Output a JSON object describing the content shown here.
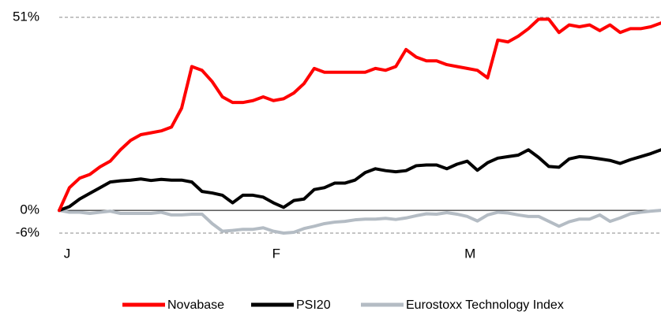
{
  "chart_data": {
    "type": "line",
    "x": [
      0,
      1,
      2,
      3,
      4,
      5,
      6,
      7,
      8,
      9,
      10,
      11,
      12,
      13,
      14,
      15,
      16,
      17,
      18,
      19,
      20,
      21,
      22,
      23,
      24,
      25,
      26,
      27,
      28,
      29,
      30,
      31,
      32,
      33,
      34,
      35,
      36,
      37,
      38,
      39,
      40,
      41,
      42,
      43,
      44,
      45,
      46,
      47,
      48,
      49,
      50,
      51,
      52,
      53,
      54,
      55,
      56,
      57,
      58,
      59
    ],
    "xlim": [
      0,
      59
    ],
    "xticks": [
      {
        "value": 0,
        "label": "J"
      },
      {
        "value": 20.5,
        "label": "F"
      },
      {
        "value": 39.5,
        "label": "M"
      }
    ],
    "ylim": [
      -6,
      51
    ],
    "yticks": [
      {
        "value": -6,
        "label": "-6%"
      },
      {
        "value": 0,
        "label": "0%"
      },
      {
        "value": 51,
        "label": "51%"
      }
    ],
    "grid": true,
    "legend": "bottom",
    "series": [
      {
        "name": "Novabase",
        "color": "#ff0000",
        "values": [
          0,
          6,
          8.5,
          9.5,
          11.5,
          13,
          16,
          18.5,
          20,
          20.5,
          21,
          22,
          27,
          38,
          37,
          34,
          30,
          28.5,
          28.5,
          29,
          30,
          29,
          29.5,
          31,
          33.5,
          37.5,
          36.5,
          36.5,
          36.5,
          36.5,
          36.5,
          37.5,
          37,
          38,
          42.5,
          40.5,
          39.5,
          39.5,
          38.5,
          38,
          37.5,
          37,
          35,
          45,
          44.5,
          46,
          48,
          50.5,
          50.5,
          47,
          49,
          48.5,
          49,
          47.5,
          49,
          47,
          48,
          48,
          48.5,
          49.5
        ]
      },
      {
        "name": "PSI20",
        "color": "#000000",
        "values": [
          0,
          1,
          3,
          4.5,
          6,
          7.5,
          7.8,
          8,
          8.3,
          7.9,
          8.2,
          8,
          8,
          7.5,
          5,
          4.6,
          4,
          2,
          4,
          4,
          3.5,
          2,
          0.8,
          2.6,
          3,
          5.5,
          6,
          7.2,
          7.2,
          8,
          10,
          11,
          10.5,
          10.2,
          10.5,
          11.8,
          12,
          12,
          11,
          12.2,
          13,
          10.6,
          12.6,
          13.8,
          14.2,
          14.6,
          16,
          14,
          11.6,
          11.4,
          13.6,
          14.2,
          14,
          13.6,
          13.2,
          12.4,
          13.4,
          14.2,
          15,
          16
        ]
      },
      {
        "name": "Eurostoxx Technology Index",
        "color": "#b4bcc4",
        "values": [
          0,
          -0.5,
          -0.5,
          -0.8,
          -0.5,
          -0.2,
          -0.8,
          -0.8,
          -0.8,
          -0.8,
          -0.5,
          -1.2,
          -1.2,
          -1,
          -1,
          -3.5,
          -5.5,
          -5.3,
          -5,
          -5,
          -4.6,
          -5.5,
          -6,
          -5.8,
          -4.8,
          -4.2,
          -3.5,
          -3.1,
          -2.9,
          -2.5,
          -2.3,
          -2.3,
          -2.1,
          -2.4,
          -2,
          -1.4,
          -0.9,
          -1,
          -0.6,
          -1,
          -1.6,
          -2.8,
          -1.2,
          -0.5,
          -0.7,
          -1.2,
          -1.6,
          -1.6,
          -2.9,
          -4.2,
          -3,
          -2.3,
          -2.3,
          -1.2,
          -2.9,
          -2,
          -0.9,
          -0.5,
          -0.2,
          0
        ]
      }
    ]
  }
}
